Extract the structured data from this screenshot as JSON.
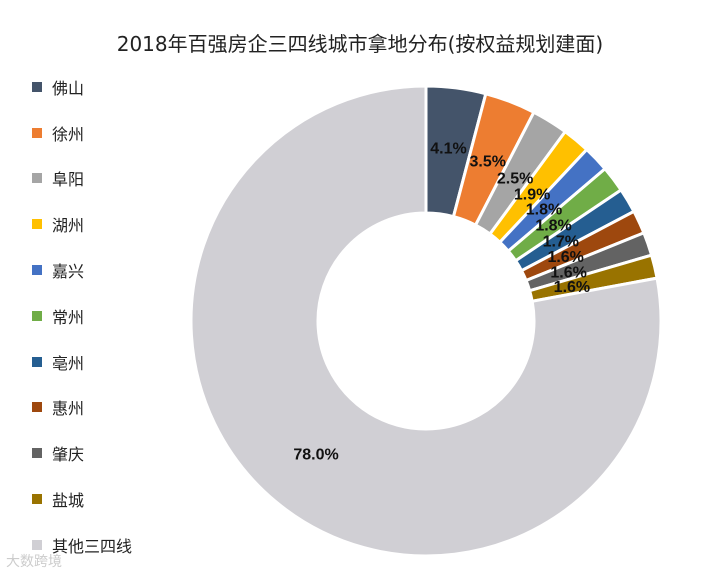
{
  "chart_data": {
    "type": "pie",
    "variant": "donut",
    "title": "2018年百强房企三四线城市拿地分布(按权益规划建面)",
    "categories": [
      "佛山",
      "徐州",
      "阜阳",
      "湖州",
      "嘉兴",
      "常州",
      "亳州",
      "惠州",
      "肇庆",
      "盐城",
      "其他三四线"
    ],
    "values": [
      4.1,
      3.5,
      2.5,
      1.9,
      1.8,
      1.8,
      1.7,
      1.6,
      1.6,
      1.6,
      78.0
    ],
    "labels": [
      "4.1%",
      "3.5%",
      "2.5%",
      "1.9%",
      "1.8%",
      "1.8%",
      "1.7%",
      "1.6%",
      "1.6%",
      "1.6%",
      "78.0%"
    ],
    "colors": [
      "#44546a",
      "#ed7d31",
      "#a5a5a5",
      "#ffc000",
      "#4472c4",
      "#70ad47",
      "#255e91",
      "#9e480e",
      "#636363",
      "#997300",
      "#d0cfd4"
    ],
    "legend_position": "left",
    "unit": "%"
  },
  "watermark": "大数跨境"
}
